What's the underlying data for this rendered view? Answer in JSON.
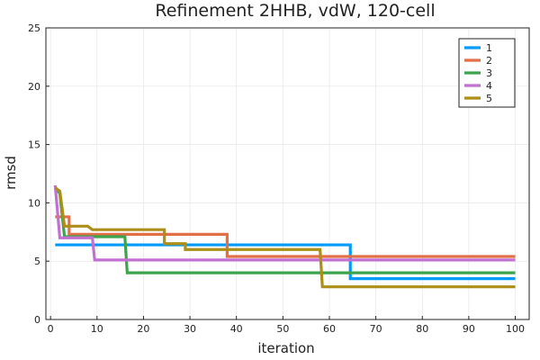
{
  "chart_data": {
    "type": "line",
    "title": "Refinement 2HHB, vdW, 120-cell",
    "xlabel": "iteration",
    "ylabel": "rmsd",
    "xlim": [
      -1,
      103
    ],
    "ylim": [
      0,
      25
    ],
    "xticks": [
      0,
      10,
      20,
      30,
      40,
      50,
      60,
      70,
      80,
      90,
      100
    ],
    "yticks": [
      0,
      5,
      10,
      15,
      20,
      25
    ],
    "grid": true,
    "legend_position": "top-right",
    "series": [
      {
        "name": "1",
        "color": "#009af9",
        "points": [
          [
            1,
            6.4
          ],
          [
            64.5,
            6.4
          ],
          [
            64.5,
            3.5
          ],
          [
            100,
            3.5
          ]
        ]
      },
      {
        "name": "2",
        "color": "#e26f46",
        "points": [
          [
            1,
            8.8
          ],
          [
            4,
            8.8
          ],
          [
            4,
            7.3
          ],
          [
            38,
            7.3
          ],
          [
            38,
            5.4
          ],
          [
            100,
            5.4
          ]
        ]
      },
      {
        "name": "3",
        "color": "#3da44d",
        "points": [
          [
            1,
            11.3
          ],
          [
            2,
            10.8
          ],
          [
            3,
            7.1
          ],
          [
            16,
            7.1
          ],
          [
            16.5,
            4.0
          ],
          [
            100,
            4.0
          ]
        ]
      },
      {
        "name": "4",
        "color": "#c271d2",
        "points": [
          [
            1,
            11.5
          ],
          [
            2,
            7.0
          ],
          [
            9,
            7.0
          ],
          [
            9.5,
            5.1
          ],
          [
            100,
            5.1
          ]
        ]
      },
      {
        "name": "5",
        "color": "#ac8e18",
        "points": [
          [
            1,
            11.3
          ],
          [
            2,
            11.0
          ],
          [
            3,
            8.0
          ],
          [
            8,
            8.0
          ],
          [
            9,
            7.7
          ],
          [
            24.5,
            7.7
          ],
          [
            24.5,
            6.5
          ],
          [
            29,
            6.5
          ],
          [
            29,
            6.0
          ],
          [
            58,
            6.0
          ],
          [
            58.5,
            2.8
          ],
          [
            100,
            2.8
          ]
        ]
      }
    ]
  }
}
